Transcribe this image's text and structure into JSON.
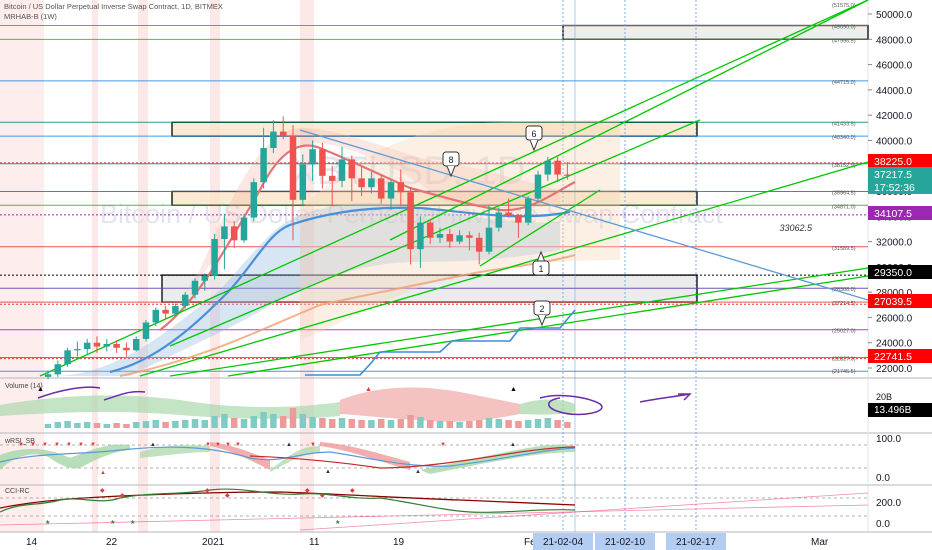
{
  "header": {
    "title": "Bitcoin / US Dollar Perpetual Inverse Swap Contract, 1D, BITMEX",
    "indicator": "MRHAB-B (1W)"
  },
  "watermark": {
    "symbol": "XBTUSD, 1D",
    "name": "Bitcoin / US Dollar Perpetual Inverse Swap Contract"
  },
  "price_axis": {
    "ticks": [
      "50000.0",
      "48000.0",
      "46000.0",
      "44000.0",
      "42000.0",
      "40000.0",
      "38000.0",
      "36000.0",
      "34000.0",
      "32000.0",
      "30000.0",
      "28000.0",
      "26000.0",
      "24000.0",
      "22000.0"
    ],
    "small_labels": [
      "(51575.0)",
      "(49090.0)",
      "(47996.5)",
      "(44715.0)",
      "(41433.5)",
      "(40340.0)",
      "(38152.9)",
      "(35964.5)",
      "(34871.0)",
      "(31589.5)",
      "(28308.0)",
      "(27214.5)",
      "(25027.0)",
      "(22827.0)",
      "(21745.5)"
    ],
    "badges": [
      {
        "text": "38225.0",
        "color": "#ff0000"
      },
      {
        "text": "37217.5",
        "color": "#26a69a"
      },
      {
        "text": "17:52:36",
        "color": "#26a69a"
      },
      {
        "text": "34107.5",
        "color": "#9c27b0"
      },
      {
        "text": "29350.0",
        "color": "#000000"
      },
      {
        "text": "27039.5",
        "color": "#ff0000"
      },
      {
        "text": "22741.5",
        "color": "#ff0000"
      }
    ],
    "inline_label": "33062.5"
  },
  "annotations": {
    "callouts": [
      "8",
      "6",
      "1",
      "2"
    ]
  },
  "volume": {
    "label": "Volume (14)",
    "ticks": [
      "20B"
    ],
    "badge": "13.496B"
  },
  "wrsi": {
    "label": "wRSI_SB",
    "ticks": [
      "100.0",
      "0.0"
    ]
  },
  "cci": {
    "label": "CCI-RC",
    "ticks": [
      "200.0",
      "0.0"
    ]
  },
  "time_axis": {
    "labels": [
      "14",
      "22",
      "2021",
      "11",
      "19",
      "Fe",
      "Mar"
    ],
    "highlights": [
      "21-02-04",
      "21-02-10",
      "21-02-17"
    ]
  },
  "colors": {
    "bull": "#26a69a",
    "bear": "#ef5350",
    "trend_green": "#00c800",
    "trend_blue": "#5b9bd5",
    "zone_fill": "#fbe3c7",
    "grey_zone": "#e6e6e6"
  },
  "chart_data": {
    "type": "candlestick",
    "title": "Bitcoin / US Dollar Perpetual Inverse Swap Contract, 1D, BITMEX",
    "ylim": [
      21000,
      51500
    ],
    "candles_ohlc": [
      [
        21300,
        21800,
        21100,
        21500
      ],
      [
        21500,
        22600,
        21300,
        22300
      ],
      [
        22300,
        23600,
        22100,
        23400
      ],
      [
        23400,
        24100,
        22900,
        23500
      ],
      [
        23500,
        24300,
        23000,
        24000
      ],
      [
        24000,
        24500,
        23200,
        23700
      ],
      [
        23700,
        24300,
        23300,
        23900
      ],
      [
        23900,
        24200,
        23200,
        23600
      ],
      [
        23600,
        24000,
        22900,
        23400
      ],
      [
        23400,
        24500,
        23300,
        24300
      ],
      [
        24300,
        25800,
        24100,
        25600
      ],
      [
        25600,
        26800,
        25300,
        26600
      ],
      [
        26600,
        26900,
        25900,
        26300
      ],
      [
        26300,
        27100,
        26100,
        26900
      ],
      [
        26900,
        28000,
        26700,
        27800
      ],
      [
        27800,
        29100,
        27500,
        28900
      ],
      [
        28900,
        29500,
        28100,
        29300
      ],
      [
        29300,
        32600,
        29000,
        32200
      ],
      [
        32200,
        34200,
        29800,
        33200
      ],
      [
        33200,
        33600,
        31500,
        32100
      ],
      [
        32100,
        34200,
        31900,
        33900
      ],
      [
        33900,
        37000,
        33600,
        36700
      ],
      [
        36700,
        41000,
        36200,
        39400
      ],
      [
        39400,
        41600,
        39000,
        40700
      ],
      [
        40700,
        41900,
        40100,
        40400
      ],
      [
        40400,
        41200,
        32100,
        35300
      ],
      [
        35300,
        38900,
        34800,
        38100
      ],
      [
        38100,
        40000,
        36800,
        39300
      ],
      [
        39300,
        39800,
        36200,
        37200
      ],
      [
        37200,
        38000,
        34800,
        36800
      ],
      [
        36800,
        39500,
        36300,
        38500
      ],
      [
        38500,
        38800,
        35200,
        37000
      ],
      [
        37000,
        37900,
        35600,
        36300
      ],
      [
        36300,
        37500,
        35800,
        37000
      ],
      [
        37000,
        37300,
        35000,
        35400
      ],
      [
        35400,
        36900,
        34500,
        36700
      ],
      [
        36700,
        37700,
        34800,
        35900
      ],
      [
        35900,
        36300,
        30200,
        31400
      ],
      [
        31400,
        34000,
        29900,
        33500
      ],
      [
        33500,
        33700,
        31800,
        32300
      ],
      [
        32300,
        33100,
        31900,
        32600
      ],
      [
        32600,
        33000,
        31500,
        32000
      ],
      [
        32000,
        32900,
        31800,
        32500
      ],
      [
        32500,
        32800,
        31300,
        32300
      ],
      [
        32300,
        32700,
        30200,
        31200
      ],
      [
        31200,
        34900,
        31000,
        33100
      ],
      [
        33100,
        34700,
        32800,
        34300
      ],
      [
        34300,
        35400,
        33900,
        34100
      ],
      [
        34100,
        34200,
        32300,
        33500
      ],
      [
        33500,
        35600,
        33300,
        35400
      ],
      [
        35400,
        37600,
        35100,
        37300
      ],
      [
        37300,
        38700,
        36800,
        38400
      ],
      [
        38400,
        38700,
        36700,
        37300
      ],
      [
        37300,
        38300,
        36900,
        37200
      ]
    ],
    "levels": [
      51575.0,
      49090.0,
      47996.5,
      44715.0,
      41433.5,
      40340.0,
      38152.9,
      35964.5,
      34871.0,
      31589.5,
      28308.0,
      27214.5,
      25027.0,
      22827.0,
      21745.5
    ],
    "zones": [
      [
        49090,
        47996.5
      ],
      [
        41433.5,
        40340
      ],
      [
        35964.5,
        34871
      ],
      [
        29350,
        27214.5
      ]
    ]
  }
}
